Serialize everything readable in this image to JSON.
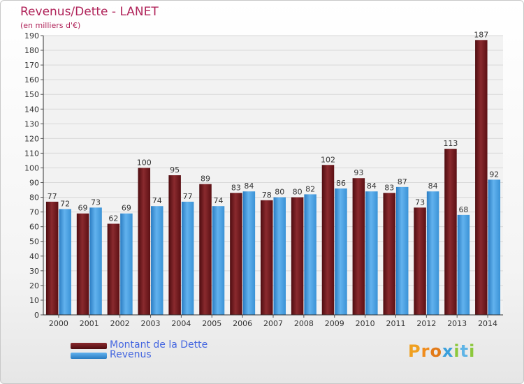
{
  "chart_data": {
    "type": "bar",
    "title": "Revenus/Dette - LANET",
    "subtitle": "(en milliers d'€)",
    "xlabel": "",
    "ylabel": "",
    "ylim": [
      0,
      190
    ],
    "ytick_step": 10,
    "grid": true,
    "legend_position": "bottom-left",
    "categories": [
      "2000",
      "2001",
      "2002",
      "2003",
      "2004",
      "2005",
      "2006",
      "2007",
      "2008",
      "2009",
      "2010",
      "2011",
      "2012",
      "2013",
      "2014"
    ],
    "series": [
      {
        "name": "Montant de la Dette",
        "color": "#7a1a1f",
        "values": [
          77,
          69,
          62,
          100,
          95,
          89,
          83,
          78,
          80,
          102,
          93,
          83,
          73,
          113,
          187
        ]
      },
      {
        "name": "Revenus",
        "color": "#3d9ce0",
        "values": [
          72,
          73,
          69,
          74,
          77,
          74,
          84,
          80,
          82,
          86,
          84,
          87,
          84,
          68,
          92
        ]
      }
    ]
  },
  "logo": {
    "text": "Proxiti"
  }
}
